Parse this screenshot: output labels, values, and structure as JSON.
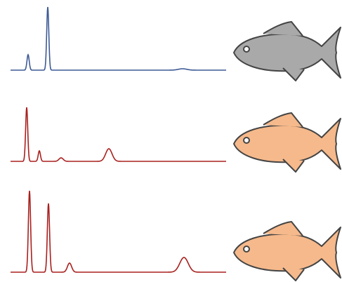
{
  "panels": [
    {
      "trace_color": "#3d5a94",
      "fish_color": "#a9a9a9"
    },
    {
      "trace_color": "#a8201e",
      "fish_color": "#f6b98b"
    },
    {
      "trace_color": "#a8201e",
      "fish_color": "#f6b98b"
    }
  ]
}
